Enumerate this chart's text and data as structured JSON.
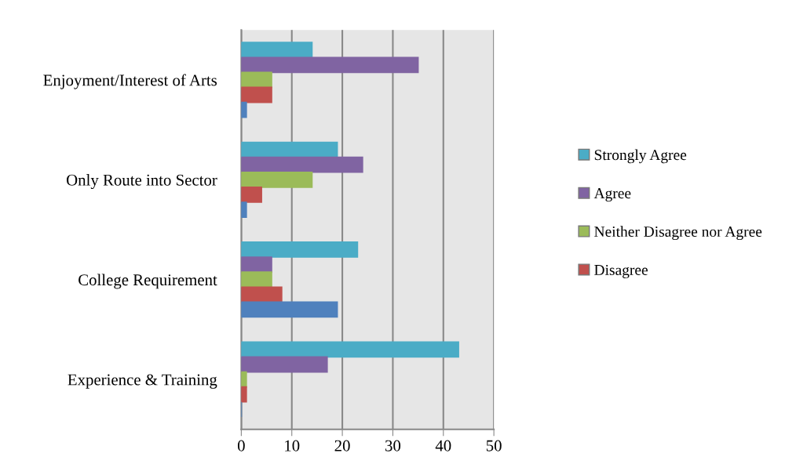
{
  "chart_data": {
    "type": "bar",
    "orientation": "horizontal",
    "categories": [
      "Enjoyment/Interest of Arts",
      "Only Route into Sector",
      "College Requirement",
      "Experience & Training"
    ],
    "series": [
      {
        "name": "Strongly Agree",
        "color": "#4bacc6",
        "values": [
          14,
          19,
          23,
          43
        ]
      },
      {
        "name": "Agree",
        "color": "#8064a2",
        "values": [
          35,
          24,
          6,
          17
        ]
      },
      {
        "name": "Neither Disagree nor Agree",
        "color": "#9bbb59",
        "values": [
          6,
          14,
          6,
          1
        ]
      },
      {
        "name": "Disagree",
        "color": "#c0504d",
        "values": [
          6,
          4,
          8,
          1
        ]
      },
      {
        "color": "#4f81bd",
        "values": [
          1,
          1,
          19,
          0
        ]
      }
    ],
    "xlim": [
      0,
      50
    ],
    "xticks": [
      0,
      10,
      20,
      30,
      40,
      50
    ],
    "grid": "x",
    "legend": "right"
  }
}
